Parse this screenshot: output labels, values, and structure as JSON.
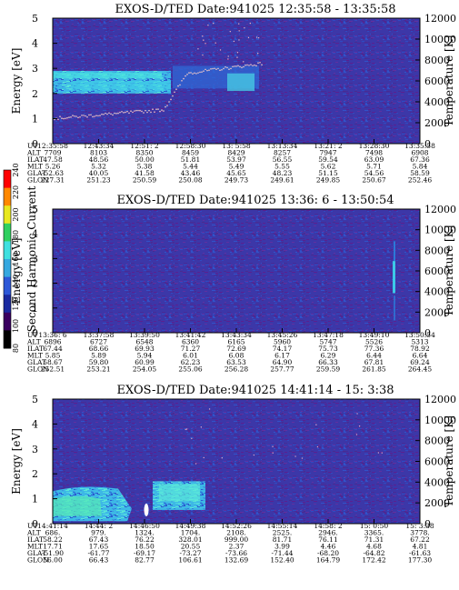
{
  "colorbar": {
    "label": "Second Harmonic Current",
    "ticks": [
      "80",
      "100",
      "120",
      "140",
      "160",
      "180",
      "200",
      "220",
      "240"
    ],
    "colors": [
      "#000000",
      "#3a0060",
      "#1a2aa0",
      "#2d58d8",
      "#36a8e0",
      "#40e0e0",
      "#30d060",
      "#e8e820",
      "#ff8800",
      "#ff0000"
    ]
  },
  "chart_data": [
    {
      "type": "heatmap",
      "title": "EXOS-D/TED   Date:941025   12:35:58 - 13:35:58",
      "ylabel": "Energy [eV]",
      "y2label": "Temperature [K]",
      "ylim": [
        0,
        5
      ],
      "y2lim": [
        0,
        12000
      ],
      "yticks": [
        "0",
        "1",
        "2",
        "3",
        "4",
        "5"
      ],
      "y2ticks": [
        "0",
        "2000",
        "4000",
        "6000",
        "8000",
        "10000",
        "12000"
      ],
      "table": {
        "labels": [
          "UT",
          "ALT",
          "ILAT",
          "MLT",
          "GLAT",
          "GLON"
        ],
        "columns": [
          [
            "12:35:58",
            "7709",
            "47.58",
            "5.26",
            "-52.63",
            "227.31"
          ],
          [
            "12:43:34",
            "8103",
            "48.56",
            "5.32",
            "40.05",
            "251.23"
          ],
          [
            "12:51: 2",
            "8350",
            "50.00",
            "5.38",
            "41.58",
            "250.59"
          ],
          [
            "12:58:30",
            "8459",
            "51.81",
            "5.44",
            "43.46",
            "250.08"
          ],
          [
            "13: 5:58",
            "8429",
            "53.97",
            "5.49",
            "45.65",
            "249.73"
          ],
          [
            "13:13:34",
            "8257",
            "56.55",
            "5.55",
            "48.23",
            "249.61"
          ],
          [
            "13:21: 2",
            "7947",
            "59.54",
            "5.62",
            "51.15",
            "249.85"
          ],
          [
            "13:28:30",
            "7498",
            "63.09",
            "5.71",
            "54.56",
            "250.67"
          ],
          [
            "13:35:58",
            "6908",
            "67.36",
            "5.84",
            "58.59",
            "252.46"
          ]
        ]
      }
    },
    {
      "type": "heatmap",
      "title": "EXOS-D/TED   Date:941025   13:36: 6 - 13:50:54",
      "ylabel": "Energy [eV]",
      "y2label": "Temperature [K]",
      "ylim": [
        0,
        5
      ],
      "y2lim": [
        0,
        12000
      ],
      "yticks": [
        "0",
        "1",
        "2",
        "3",
        "4",
        "5"
      ],
      "y2ticks": [
        "0",
        "2000",
        "4000",
        "6000",
        "8000",
        "10000",
        "12000"
      ],
      "table": {
        "labels": [
          "UT",
          "ALT",
          "ILAT",
          "MLT",
          "GLAT",
          "GLON"
        ],
        "columns": [
          [
            "13:36: 6",
            "6896",
            "67.44",
            "5.85",
            "58.67",
            "252.51"
          ],
          [
            "13:37:58",
            "6727",
            "68.66",
            "5.89",
            "59.80",
            "253.21"
          ],
          [
            "13:39:50",
            "6548",
            "69.93",
            "5.94",
            "60.99",
            "254.05"
          ],
          [
            "13:41:42",
            "6360",
            "71.27",
            "6.01",
            "62.23",
            "255.06"
          ],
          [
            "13:43:34",
            "6165",
            "72.69",
            "6.08",
            "63.53",
            "256.28"
          ],
          [
            "13:45:26",
            "5960",
            "74.17",
            "6.17",
            "64.90",
            "257.77"
          ],
          [
            "13:47:18",
            "5747",
            "75.73",
            "6.29",
            "66.33",
            "259.59"
          ],
          [
            "13:49:10",
            "5526",
            "77.36",
            "6.44",
            "67.81",
            "261.85"
          ],
          [
            "13:50:54",
            "5313",
            "78.92",
            "6.64",
            "69.24",
            "264.45"
          ]
        ]
      }
    },
    {
      "type": "heatmap",
      "title": "EXOS-D/TED   Date:941025   14:41:14 - 15: 3:38",
      "ylabel": "Energy [eV]",
      "y2label": "Temperature [K]",
      "ylim": [
        0,
        5
      ],
      "y2lim": [
        0,
        12000
      ],
      "yticks": [
        "0",
        "1",
        "2",
        "3",
        "4",
        "5"
      ],
      "y2ticks": [
        "0",
        "2000",
        "4000",
        "6000",
        "8000",
        "10000",
        "12000"
      ],
      "table": {
        "labels": [
          "UT",
          "ALT",
          "ILAT",
          "MLT",
          "GLAT",
          "GLON"
        ],
        "columns": [
          [
            "14:41:14",
            "686.",
            "58.22",
            "17.71",
            "-51.90",
            "56.00"
          ],
          [
            "14:44: 2",
            "979.",
            "67.43",
            "17.65",
            "-61.77",
            "66.43"
          ],
          [
            "14:46:50",
            "1324.",
            "76.22",
            "18.50",
            "-69.17",
            "82.77"
          ],
          [
            "14:49:38",
            "1704.",
            "328.01",
            "20.55",
            "-73.27",
            "106.61"
          ],
          [
            "14:52:26",
            "2108.",
            "999.00",
            "2.37",
            "-73.66",
            "132.69"
          ],
          [
            "14:55:14",
            "2525.",
            "81.71",
            "3.99",
            "-71.44",
            "152.40"
          ],
          [
            "14:58: 2",
            "2946.",
            "76.11",
            "4.46",
            "-68.20",
            "164.79"
          ],
          [
            "15: 0:50",
            "3365.",
            "71.31",
            "4.68",
            "-64.82",
            "172.42"
          ],
          [
            "15: 3:38",
            "3778.",
            "67.22",
            "4.81",
            "-61.63",
            "177.30"
          ]
        ]
      }
    }
  ]
}
